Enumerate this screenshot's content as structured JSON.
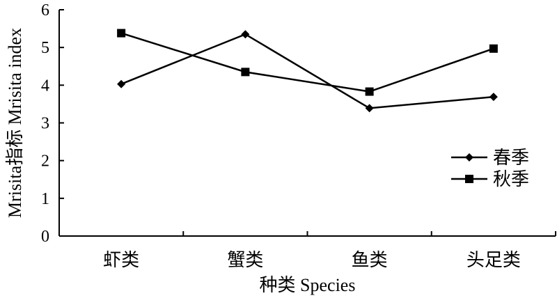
{
  "chart_data": {
    "type": "line",
    "title": "",
    "xlabel": "种类 Species",
    "ylabel": "Mrisita指标 Mrisita index",
    "categories": [
      "虾类",
      "蟹类",
      "鱼类",
      "头足类"
    ],
    "ylim": [
      0,
      6
    ],
    "yticks": [
      0,
      1,
      2,
      3,
      4,
      5,
      6
    ],
    "grid": false,
    "legend_position": "right",
    "series": [
      {
        "name": "春季",
        "marker": "diamond",
        "values": [
          4.03,
          5.35,
          3.39,
          3.69
        ]
      },
      {
        "name": "秋季",
        "marker": "square",
        "values": [
          5.38,
          4.35,
          3.83,
          4.97
        ]
      }
    ]
  }
}
